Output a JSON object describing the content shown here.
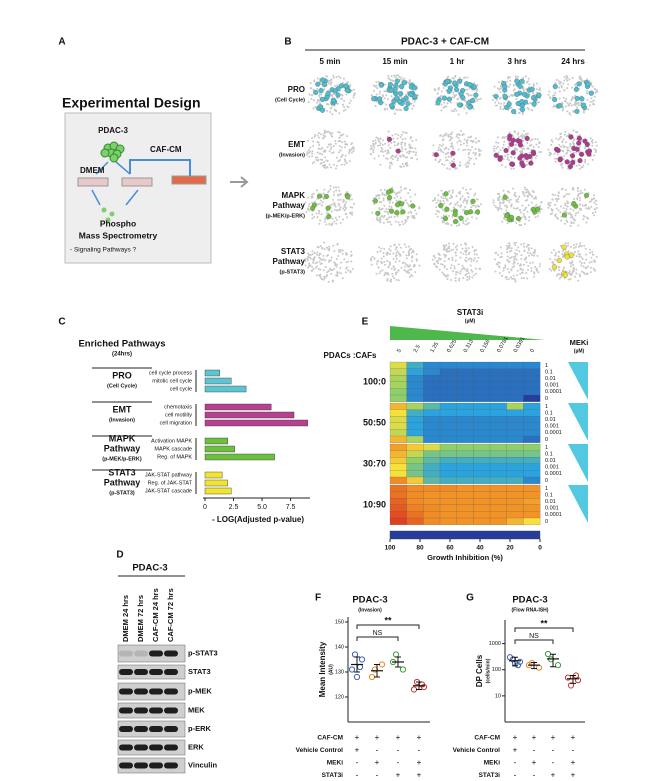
{
  "panel_labels": [
    "A",
    "B",
    "C",
    "D",
    "E",
    "F",
    "G"
  ],
  "design": {
    "title": "Experimental Design",
    "cells": "PDAC-3",
    "medium": "DMEM",
    "conditioned": "CAF-CM",
    "readout": [
      "Phospho",
      "Mass Spectrometry"
    ],
    "question": "- Signaling Pathways ?"
  },
  "network": {
    "title": "PDAC-3 + CAF-CM",
    "times": [
      "5 min",
      "15 min",
      "1 hr",
      "3 hrs",
      "24 hrs"
    ],
    "rows": [
      [
        "PRO",
        "(Cell Cycle)"
      ],
      [
        "EMT",
        "(Invasion)"
      ],
      [
        "MAPK",
        "Pathway",
        "(p-MEK/p-ERK)"
      ],
      [
        "STAT3",
        "Pathway",
        "(p-STAT3)"
      ]
    ],
    "colors": [
      "#4fbdd0",
      "#b03a90",
      "#6cbf3f",
      "#f0e433"
    ]
  },
  "blot": {
    "title": "PDAC-3",
    "lanes": [
      "DMEM 24 hrs",
      "DMEM 72 hrs",
      "CAF-CM 24 hrs",
      "CAF-CM 72 hrs"
    ],
    "bands": [
      "p-STAT3",
      "STAT3",
      "p-MEK",
      "MEK",
      "p-ERK",
      "ERK",
      "Vinculin"
    ]
  },
  "chart_data": [
    {
      "type": "barh",
      "title": "Enriched Pathways",
      "subtitle": "(24hrs)",
      "xlabel": "- LOG(Adjusted p-value)",
      "xlim": [
        0,
        9.2
      ],
      "xticks": [
        0,
        2.5,
        {
          "value": 5,
          "label": "5.0"
        },
        7.5
      ],
      "groups": [
        {
          "label": [
            "PRO",
            "(Cell Cycle)"
          ],
          "color": "#5ec4cf",
          "categories": [
            "cell cycle process",
            "mitotic cell cycle",
            "cell cycle"
          ],
          "values": [
            1.3,
            2.3,
            3.6
          ]
        },
        {
          "label": [
            "EMT",
            "(Invasion)"
          ],
          "color": "#b5418f",
          "categories": [
            "chemotaxis",
            "cell motility",
            "cell migration"
          ],
          "values": [
            5.8,
            7.8,
            9.0
          ]
        },
        {
          "label": [
            "MAPK",
            "Pathway",
            "(p-MEK/p-ERK)"
          ],
          "color": "#6cbf3f",
          "categories": [
            "Activation MAPK",
            "MAPK cascade",
            "Reg. of MAPK"
          ],
          "values": [
            2.0,
            2.6,
            6.1
          ]
        },
        {
          "label": [
            "STAT3",
            "Pathway",
            "(p-STAT3)"
          ],
          "color": "#f0e433",
          "categories": [
            "JAK-STAT pathway",
            "Reg. of JAK-STAT",
            "JAK-STAT cascade"
          ],
          "values": [
            1.5,
            2.0,
            2.3
          ]
        }
      ]
    },
    {
      "type": "heatmap",
      "xtitle": [
        "STAT3i",
        "(µM)"
      ],
      "ytitle": [
        "MEKi",
        "(µM)"
      ],
      "group_title": "PDACs :CAFs",
      "x": [
        "5",
        "2.5",
        "1.25",
        "0.625",
        "0.313",
        "0.156",
        "0.0781",
        "0.0391",
        "0"
      ],
      "rows": [
        "1",
        "0.1",
        "0.01",
        "0.001",
        "0.0001",
        "0"
      ],
      "clim": [
        0,
        100
      ],
      "colorscale": [
        "#283c9e",
        "#2aa3de",
        "#8fcf6b",
        "#f5e03c",
        "#f08b25",
        "#d7261e"
      ],
      "cticks": [
        100,
        80,
        60,
        40,
        20,
        0
      ],
      "clabel": "Growth Inhibition (%)",
      "groups": [
        {
          "name": "100:0",
          "values": [
            [
              55,
              25,
              15,
              15,
              15,
              15,
              15,
              15,
              15
            ],
            [
              50,
              20,
              15,
              10,
              10,
              10,
              10,
              10,
              10
            ],
            [
              45,
              15,
              10,
              10,
              10,
              10,
              10,
              10,
              10
            ],
            [
              45,
              15,
              10,
              10,
              10,
              10,
              10,
              10,
              10
            ],
            [
              40,
              15,
              10,
              10,
              10,
              10,
              10,
              10,
              10
            ],
            [
              40,
              15,
              10,
              10,
              10,
              10,
              10,
              10,
              0
            ]
          ]
        },
        {
          "name": "50:50",
          "values": [
            [
              70,
              45,
              30,
              20,
              20,
              20,
              20,
              45,
              20
            ],
            [
              60,
              25,
              20,
              20,
              20,
              20,
              20,
              20,
              20
            ],
            [
              55,
              20,
              15,
              15,
              15,
              15,
              15,
              15,
              15
            ],
            [
              55,
              20,
              15,
              15,
              15,
              15,
              15,
              15,
              15
            ],
            [
              50,
              20,
              15,
              15,
              15,
              15,
              15,
              15,
              15
            ],
            [
              70,
              45,
              15,
              15,
              15,
              15,
              15,
              15,
              10
            ]
          ]
        },
        {
          "name": "30:70",
          "values": [
            [
              75,
              65,
              55,
              40,
              40,
              40,
              40,
              40,
              40
            ],
            [
              70,
              50,
              35,
              35,
              35,
              35,
              35,
              35,
              35
            ],
            [
              65,
              40,
              30,
              25,
              25,
              25,
              25,
              25,
              25
            ],
            [
              60,
              35,
              25,
              20,
              20,
              20,
              20,
              20,
              20
            ],
            [
              60,
              35,
              25,
              20,
              20,
              20,
              20,
              20,
              20
            ],
            [
              80,
              65,
              30,
              25,
              25,
              25,
              25,
              25,
              15
            ]
          ]
        },
        {
          "name": "10:90",
          "values": [
            [
              85,
              80,
              80,
              80,
              78,
              78,
              78,
              78,
              78
            ],
            [
              85,
              80,
              78,
              78,
              78,
              78,
              78,
              78,
              78
            ],
            [
              88,
              80,
              78,
              78,
              78,
              78,
              78,
              78,
              75
            ],
            [
              90,
              82,
              80,
              78,
              78,
              78,
              78,
              78,
              78
            ],
            [
              92,
              85,
              80,
              78,
              78,
              78,
              78,
              78,
              78
            ],
            [
              95,
              88,
              80,
              78,
              78,
              78,
              78,
              70,
              60
            ]
          ]
        }
      ]
    },
    {
      "type": "dotplot",
      "title": "PDAC-3",
      "subtitle": "(Invasion)",
      "ylabel": [
        "Mean Intensity",
        "(AU)"
      ],
      "ylim": [
        110,
        152
      ],
      "yticks": [
        120,
        130,
        140,
        150
      ],
      "annotations": [
        "NS",
        "**"
      ],
      "groups": [
        {
          "color": "#3f5fb0",
          "points": [
            131,
            135,
            137,
            132,
            128
          ],
          "mean": 133,
          "error": 3
        },
        {
          "color": "#e08a2c",
          "points": [
            128,
            133,
            131
          ],
          "mean": 130.5,
          "error": 2.5
        },
        {
          "color": "#3f9a3a",
          "points": [
            134,
            131,
            137
          ],
          "mean": 134,
          "error": 2
        },
        {
          "color": "#c8352d",
          "points": [
            123,
            124,
            126,
            125
          ],
          "mean": 124.5,
          "error": 1.5
        }
      ],
      "conditions": [
        {
          "name": "CAF-CM",
          "values": [
            "+",
            "+",
            "+",
            "+"
          ]
        },
        {
          "name": "Vehicle Control",
          "values": [
            "+",
            "-",
            "-",
            "-"
          ]
        },
        {
          "name": "MEKi",
          "values": [
            "-",
            "+",
            "-",
            "+"
          ]
        },
        {
          "name": "STAT3i",
          "values": [
            "-",
            "-",
            "+",
            "+"
          ]
        }
      ]
    },
    {
      "type": "dotplot",
      "title": "PDAC-3",
      "subtitle": "(Flow RNA-ISH)",
      "ylabel": [
        "DP Cells",
        "(cells/min)"
      ],
      "log": true,
      "ylim": [
        1,
        8000
      ],
      "yticks": [
        10,
        100,
        1000
      ],
      "annotations": [
        "NS",
        "**"
      ],
      "groups": [
        {
          "color": "#3f5fb0",
          "points": [
            300,
            200,
            250,
            150,
            180
          ],
          "mean": 220,
          "error": 80
        },
        {
          "color": "#e08a2c",
          "points": [
            150,
            120,
            180
          ],
          "mean": 150,
          "error": 40
        },
        {
          "color": "#3f9a3a",
          "points": [
            400,
            150,
            250
          ],
          "mean": 260,
          "error": 130
        },
        {
          "color": "#c8352d",
          "points": [
            50,
            40,
            25,
            60
          ],
          "mean": 45,
          "error": 15
        }
      ],
      "conditions": [
        {
          "name": "CAF-CM",
          "values": [
            "+",
            "+",
            "+",
            "+"
          ]
        },
        {
          "name": "Vehicle Control",
          "values": [
            "+",
            "-",
            "-",
            "-"
          ]
        },
        {
          "name": "MEKi",
          "values": [
            "-",
            "+",
            "-",
            "+"
          ]
        },
        {
          "name": "STAT3i",
          "values": [
            "-",
            "-",
            "+",
            "+"
          ]
        }
      ]
    }
  ]
}
